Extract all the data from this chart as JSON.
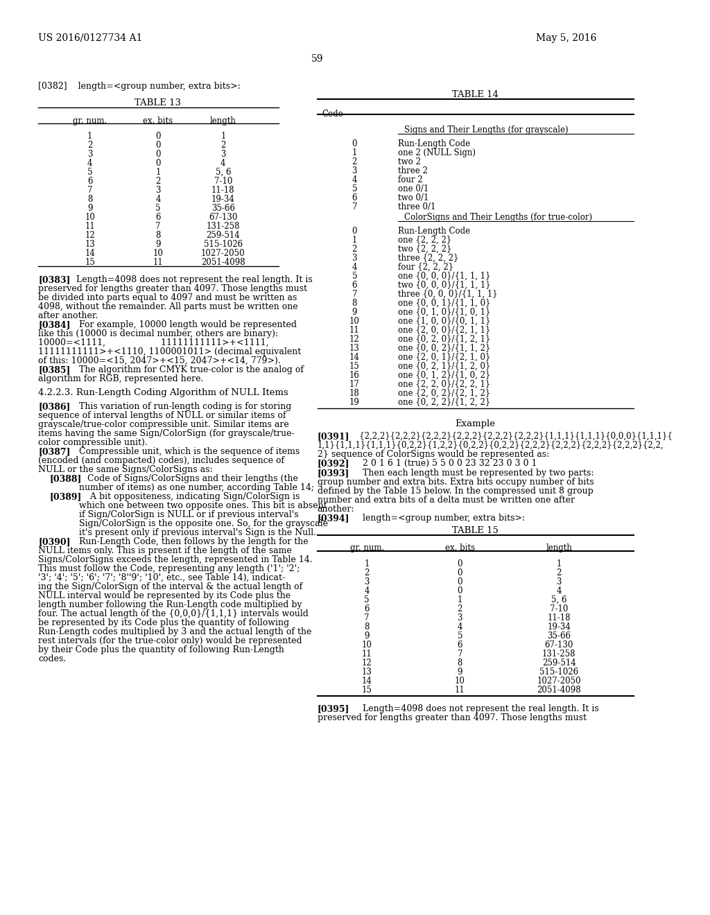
{
  "header_left": "US 2016/0127734 A1",
  "header_right": "May 5, 2016",
  "page_number": "59",
  "background_color": "#ffffff",
  "para_382": "[0382]    length=<group number, extra bits>:",
  "table13_title": "TABLE 13",
  "table13_headers": [
    "gr. num.",
    "ex. bits",
    "length"
  ],
  "table13_rows": [
    [
      "1",
      "0",
      "1"
    ],
    [
      "2",
      "0",
      "2"
    ],
    [
      "3",
      "0",
      "3"
    ],
    [
      "4",
      "0",
      "4"
    ],
    [
      "5",
      "1",
      "5, 6"
    ],
    [
      "6",
      "2",
      "7-10"
    ],
    [
      "7",
      "3",
      "11-18"
    ],
    [
      "8",
      "4",
      "19-34"
    ],
    [
      "9",
      "5",
      "35-66"
    ],
    [
      "10",
      "6",
      "67-130"
    ],
    [
      "11",
      "7",
      "131-258"
    ],
    [
      "12",
      "8",
      "259-514"
    ],
    [
      "13",
      "9",
      "515-1026"
    ],
    [
      "14",
      "10",
      "1027-2050"
    ],
    [
      "15",
      "11",
      "2051-4098"
    ]
  ],
  "para_383": "[0383]    Length=4098 does not represent the real length. It is preserved for lengths greater than 4097. Those lengths must be divided into parts equal to 4097 and must be written as 4098, without the remainder. All parts must be written one after another.",
  "para_384_line1": "[0384]    For example, 10000 length would be represented",
  "para_384_line2": "like this (10000 is decimal number, others are binary):",
  "para_384_line3": "10000=<1111,                    11111111111>+<1111,",
  "para_384_line4": "11111111111>+<1110, 1100001011> (decimal equivalent",
  "para_384_line5": "of this: 10000=<15, 2047>+<15, 2047>+<14, 779>).",
  "para_385": "[0385]    The algorithm for CMYK true-color is the analog of algorithm for RGB, represented here.",
  "section_422": "4.2.2.3. Run-Length Coding Algorithm of NULL Items",
  "para_386": "[0386]    This variation of run-length coding is for storing sequence of interval lengths of NULL or similar items of grayscale/true-color compressible unit. Similar items are items having the same Sign/ColorSign (for grayscale/true-color compressible unit).",
  "para_387": "[0387]    Compressible unit, which is the sequence of items (encoded (and compacted) codes), includes sequence of NULL or the same Signs/ColorSigns as:",
  "para_388": "[0388]    Code of Signs/ColorSigns and their lengths (the number of items) as one number, according Table 14;",
  "para_389_line1": "[0389]    A bit oppositeness, indicating Sign/ColorSign is",
  "para_389_line2": "which one between two opposite ones. This bit is absent",
  "para_389_line3": "if Sign/ColorSign is NULL or if previous interval's",
  "para_389_line4": "Sign/ColorSign is the opposite one. So, for the grayscale",
  "para_389_line5": "it's present only if previous interval's Sign is the Null.",
  "para_390_line1": "[0390]    Run-Length Code, then follows by the length for the",
  "para_390_line2": "NULL items only. This is present if the length of the same",
  "para_390_line3": "Signs/ColorSigns exceeds the length, represented in Table 14.",
  "para_390_line4": "This must follow the Code, representing any length ('1'; '2';",
  "para_390_line5": "'3'; '4'; '5'; '6'; '7'; '8''9'; '10', etc., see Table 14), indicat-",
  "para_390_line6": "ing the Sign/ColorSign of the interval & the actual length of",
  "para_390_line7": "NULL interval would be represented by its Code plus the",
  "para_390_line8": "length number following the Run-Length code multiplied by",
  "para_390_line9": "four. The actual length of the {0,0,0}/{1,1,1} intervals would",
  "para_390_line10": "be represented by its Code plus the quantity of following",
  "para_390_line11": "Run-Length codes multiplied by 3 and the actual length of the",
  "para_390_line12": "rest intervals (for the true-color only) would be represented",
  "para_390_line13": "by their Code plus the quantity of following Run-Length",
  "para_390_line14": "codes.",
  "table14_title": "TABLE 14",
  "table14_col1": "Code",
  "table14_section1_header": "Signs and Their Lengths (for grayscale)",
  "table14_grayscale_rows": [
    [
      "0",
      "Run-Length Code"
    ],
    [
      "1",
      "one 2 (NULL Sign)"
    ],
    [
      "2",
      "two 2"
    ],
    [
      "3",
      "three 2"
    ],
    [
      "4",
      "four 2"
    ],
    [
      "5",
      "one 0/1"
    ],
    [
      "6",
      "two 0/1"
    ],
    [
      "7",
      "three 0/1"
    ]
  ],
  "table14_section2_header": "ColorSigns and Their Lengths (for true-color)",
  "table14_truecolor_rows": [
    [
      "0",
      "Run-Length Code"
    ],
    [
      "1",
      "one {2, 2, 2}"
    ],
    [
      "2",
      "two {2, 2, 2}"
    ],
    [
      "3",
      "three {2, 2, 2}"
    ],
    [
      "4",
      "four {2, 2, 2}"
    ],
    [
      "5",
      "one {0, 0, 0}/{1, 1, 1}"
    ],
    [
      "6",
      "two {0, 0, 0}/{1, 1, 1}"
    ],
    [
      "7",
      "three {0, 0, 0}/{1, 1, 1}"
    ],
    [
      "8",
      "one {0, 0, 1}/{1, 1, 0}"
    ],
    [
      "9",
      "one {0, 1, 0}/{1, 0, 1}"
    ],
    [
      "10",
      "one {1, 0, 0}/{0, 1, 1}"
    ],
    [
      "11",
      "one {2, 0, 0}/{2, 1, 1}"
    ],
    [
      "12",
      "one {0, 2, 0}/{1, 2, 1}"
    ],
    [
      "13",
      "one {0, 0, 2}/{1, 1, 2}"
    ],
    [
      "14",
      "one {2, 0, 1}/{2, 1, 0}"
    ],
    [
      "15",
      "one {0, 2, 1}/{1, 2, 0}"
    ],
    [
      "16",
      "one {0, 1, 2}/{1, 0, 2}"
    ],
    [
      "17",
      "one {2, 2, 0}/{2, 2, 1}"
    ],
    [
      "18",
      "one {2, 0, 2}/{2, 1, 2}"
    ],
    [
      "19",
      "one {0, 2, 2}/{1, 2, 2}"
    ]
  ],
  "example_title": "Example",
  "para_391_line1": "[0391]    {2,2,2}{2,2,2}{2,2,2}{2,2,2}{2,2,2}{2,2,2}{1,1,1}{1,1,1}{0,0,0}{1,1,1}{",
  "para_391_line2": "1,1}{1,1,1}{1,1,1}{0,2,2}{1,2,2}{0,2,2}{0,2,2}{2,2,2}{2,2,2}{2,2,2}{2,2,2}{2,2,",
  "para_391_line3": "2} sequence of ColorSigns would be represented as:",
  "para_392": "[0392]    2 0 1 6 1 (true) 5 5 0 0 23 32 23 0 3 0 1",
  "para_393_line1": "[0393]    Then each length must be represented by two parts:",
  "para_393_line2": "group number and extra bits. Extra bits occupy number of bits",
  "para_393_line3": "defined by the Table 15 below. In the compressed unit 8 group",
  "para_393_line4": "number and extra bits of a delta must be written one after",
  "para_393_line5": "another:",
  "para_394": "[0394]    length=<group number, extra bits>:",
  "table15_title": "TABLE 15",
  "table15_headers": [
    "gr. num.",
    "ex. bits",
    "length"
  ],
  "table15_rows": [
    [
      "1",
      "0",
      "1"
    ],
    [
      "2",
      "0",
      "2"
    ],
    [
      "3",
      "0",
      "3"
    ],
    [
      "4",
      "0",
      "4"
    ],
    [
      "5",
      "1",
      "5, 6"
    ],
    [
      "6",
      "2",
      "7-10"
    ],
    [
      "7",
      "3",
      "11-18"
    ],
    [
      "8",
      "4",
      "19-34"
    ],
    [
      "9",
      "5",
      "35-66"
    ],
    [
      "10",
      "6",
      "67-130"
    ],
    [
      "11",
      "7",
      "131-258"
    ],
    [
      "12",
      "8",
      "259-514"
    ],
    [
      "13",
      "9",
      "515-1026"
    ],
    [
      "14",
      "10",
      "1027-2050"
    ],
    [
      "15",
      "11",
      "2051-4098"
    ]
  ],
  "para_395_line1": "[0395]    Length=4098 does not represent the real length. It is",
  "para_395_line2": "preserved for lengths greater than 4097. Those lengths must"
}
